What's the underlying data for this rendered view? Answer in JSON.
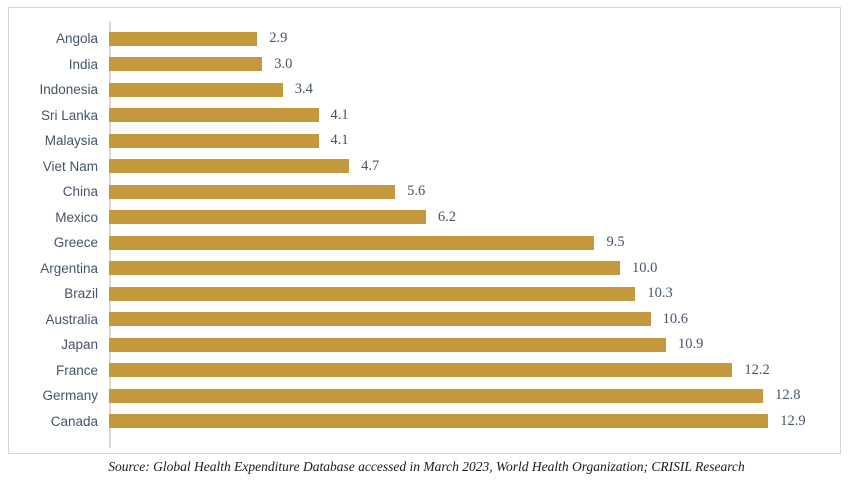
{
  "chart_data": {
    "type": "bar",
    "orientation": "horizontal",
    "title": "",
    "xlabel": "",
    "ylabel": "",
    "categories": [
      "Angola",
      "India",
      "Indonesia",
      "Sri Lanka",
      "Malaysia",
      "Viet Nam",
      "China",
      "Mexico",
      "Greece",
      "Argentina",
      "Brazil",
      "Australia",
      "Japan",
      "France",
      "Germany",
      "Canada"
    ],
    "values": [
      2.9,
      3.0,
      3.4,
      4.1,
      4.1,
      4.7,
      5.6,
      6.2,
      9.5,
      10.0,
      10.3,
      10.6,
      10.9,
      12.2,
      12.8,
      12.9
    ],
    "value_labels": [
      "2.9",
      "3.0",
      "3.4",
      "4.1",
      "4.1",
      "4.7",
      "5.6",
      "6.2",
      "9.5",
      "10.0",
      "10.3",
      "10.6",
      "10.9",
      "12.2",
      "12.8",
      "12.9"
    ],
    "xlim": [
      0,
      14.35
    ],
    "grid": false,
    "legend": false,
    "bar_color": "#C4993D",
    "label_color": "#44546A",
    "axis_line_color": "#D9D9D9",
    "border_color": "#D6D6D6"
  },
  "source_note": "Source: Global Health Expenditure Database accessed in March 2023, World Health Organization; CRISIL Research"
}
